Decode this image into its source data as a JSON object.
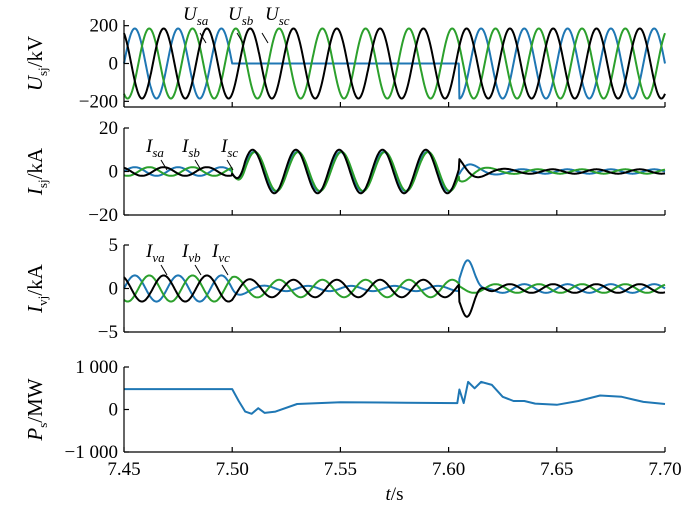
{
  "chart_data": [
    {
      "type": "line",
      "ylabel": {
        "main": "U",
        "sub": "sj",
        "unit": "/kV"
      },
      "ylim": [
        -230,
        230
      ],
      "yticks": [
        "200",
        "0",
        "−200"
      ],
      "ytick_values": [
        200,
        0,
        -200
      ],
      "series": [
        {
          "name": "U",
          "name_sub": "sa",
          "color": "#1f77b4",
          "amplitude": 185,
          "freq_hz": 50,
          "phase_deg": 0,
          "events": "collapses to 0 kV during fault 7.50–7.605 s"
        },
        {
          "name": "U",
          "name_sub": "sb",
          "color": "#2ca02c",
          "amplitude": 185,
          "freq_hz": 50,
          "phase_deg": -120
        },
        {
          "name": "U",
          "name_sub": "sc",
          "color": "#000000",
          "amplitude": 185,
          "freq_hz": 50,
          "phase_deg": 120
        }
      ]
    },
    {
      "type": "line",
      "ylabel": {
        "main": "I",
        "sub": "sj",
        "unit": "/kA"
      },
      "ylim": [
        -20,
        20
      ],
      "yticks": [
        "20",
        "0",
        "−20"
      ],
      "ytick_values": [
        20,
        0,
        -20
      ],
      "series": [
        {
          "name": "I",
          "name_sub": "sa",
          "color": "#1f77b4",
          "amplitude_pre": 2,
          "amplitude_fault": 9,
          "amplitude_post": 1
        },
        {
          "name": "I",
          "name_sub": "sb",
          "color": "#2ca02c",
          "amplitude_pre": 2,
          "amplitude_fault": 9,
          "amplitude_post": 1
        },
        {
          "name": "I",
          "name_sub": "sc",
          "color": "#000000",
          "amplitude_pre": 2,
          "amplitude_fault": 10,
          "amplitude_post": 1
        }
      ]
    },
    {
      "type": "line",
      "ylabel": {
        "main": "I",
        "sub": "vj",
        "unit": "/kA"
      },
      "ylim": [
        -5,
        5
      ],
      "yticks": [
        "5",
        "0",
        "−5"
      ],
      "ytick_values": [
        5,
        0,
        -5
      ],
      "series": [
        {
          "name": "I",
          "name_sub": "va",
          "color": "#1f77b4",
          "amplitude_pre": 1.5,
          "amplitude_fault": 0.3,
          "amplitude_post": 0.5,
          "peak": 3.5
        },
        {
          "name": "I",
          "name_sub": "vb",
          "color": "#2ca02c",
          "amplitude_pre": 1.5,
          "amplitude_fault": 1.0,
          "amplitude_post": 0.5
        },
        {
          "name": "I",
          "name_sub": "vc",
          "color": "#000000",
          "amplitude_pre": 1.5,
          "amplitude_fault": 1.0,
          "amplitude_post": 0.5,
          "peak": -3.8
        }
      ]
    },
    {
      "type": "line",
      "ylabel": {
        "main": "P",
        "sub": "s",
        "unit": "/MW"
      },
      "ylim": [
        -1000,
        1000
      ],
      "yticks": [
        "1 000",
        "0",
        "−1 000"
      ],
      "ytick_values": [
        1000,
        0,
        -1000
      ],
      "series": [
        {
          "color": "#1f77b4",
          "x": [
            7.45,
            7.5,
            7.503,
            7.506,
            7.509,
            7.512,
            7.515,
            7.52,
            7.53,
            7.55,
            7.58,
            7.604,
            7.605,
            7.607,
            7.609,
            7.612,
            7.615,
            7.62,
            7.625,
            7.63,
            7.635,
            7.64,
            7.65,
            7.66,
            7.67,
            7.68,
            7.69,
            7.7
          ],
          "y": [
            480,
            480,
            200,
            -50,
            -100,
            30,
            -80,
            -50,
            130,
            170,
            160,
            150,
            470,
            150,
            650,
            500,
            650,
            580,
            300,
            200,
            200,
            140,
            110,
            200,
            330,
            300,
            180,
            130
          ]
        }
      ]
    }
  ],
  "x_axis": {
    "label_main": "t",
    "label_unit": "/s",
    "xlim": [
      7.45,
      7.7
    ],
    "ticks": [
      "7.45",
      "7.50",
      "7.55",
      "7.60",
      "7.65",
      "7.70"
    ],
    "tick_values": [
      7.45,
      7.5,
      7.55,
      7.6,
      7.65,
      7.7
    ]
  }
}
